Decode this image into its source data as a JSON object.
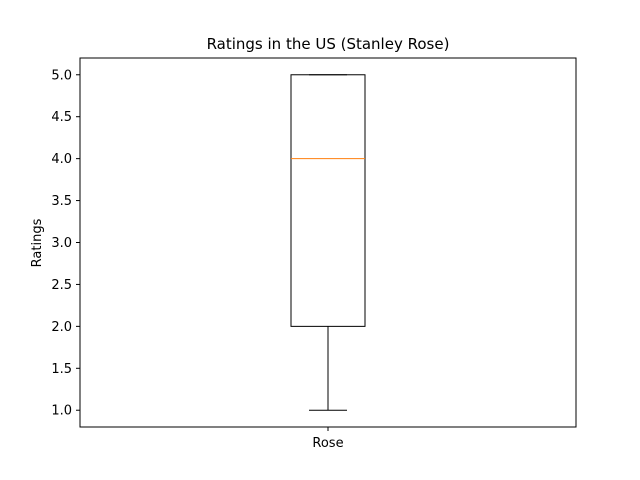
{
  "chart_data": {
    "type": "box",
    "title": "Ratings in the US (Stanley Rose)",
    "xlabel": "",
    "ylabel": "Ratings",
    "categories": [
      "Rose"
    ],
    "ylim": [
      0.8,
      5.2
    ],
    "yticks": [
      1.0,
      1.5,
      2.0,
      2.5,
      3.0,
      3.5,
      4.0,
      4.5,
      5.0
    ],
    "ytick_labels": [
      "1.0",
      "1.5",
      "2.0",
      "2.5",
      "3.0",
      "3.5",
      "4.0",
      "4.5",
      "5.0"
    ],
    "grid": false,
    "series": [
      {
        "whisker_low": 1.0,
        "q1": 2.0,
        "median": 4.0,
        "q3": 5.0,
        "whisker_high": 5.0
      }
    ],
    "colors": {
      "box": "#000000",
      "median": "#ff7f0e"
    }
  }
}
